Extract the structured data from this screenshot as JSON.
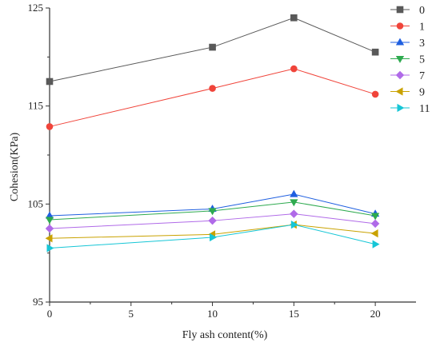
{
  "chart_data": {
    "type": "line",
    "xlabel": "Fly ash content(%)",
    "ylabel": "Cohesion(KPa)",
    "xlim": [
      0,
      22.5
    ],
    "ylim": [
      95,
      125
    ],
    "x_ticks": [
      "0",
      "5",
      "10",
      "15",
      "20"
    ],
    "y_ticks": [
      "95",
      "105",
      "115",
      "125"
    ],
    "x": [
      0,
      10,
      15,
      20
    ],
    "legend_position": "top-right",
    "grid": false,
    "series": [
      {
        "name": "0",
        "color": "#595959",
        "marker": "square",
        "values": [
          117.5,
          121.0,
          124.0,
          120.5
        ]
      },
      {
        "name": "1",
        "color": "#f0443a",
        "marker": "circle",
        "values": [
          112.9,
          116.8,
          118.8,
          116.2
        ]
      },
      {
        "name": "3",
        "color": "#1f5fe0",
        "marker": "triangle-up",
        "values": [
          103.8,
          104.5,
          106.0,
          104.0
        ]
      },
      {
        "name": "5",
        "color": "#2eaa4f",
        "marker": "triangle-down",
        "values": [
          103.4,
          104.3,
          105.2,
          103.8
        ]
      },
      {
        "name": "7",
        "color": "#b06ae8",
        "marker": "diamond",
        "values": [
          102.5,
          103.3,
          104.0,
          103.0
        ]
      },
      {
        "name": "9",
        "color": "#c9a200",
        "marker": "triangle-left",
        "values": [
          101.5,
          101.9,
          102.9,
          102.0
        ]
      },
      {
        "name": "11",
        "color": "#16c6d6",
        "marker": "triangle-right",
        "values": [
          100.5,
          101.6,
          102.9,
          100.9
        ]
      }
    ]
  }
}
